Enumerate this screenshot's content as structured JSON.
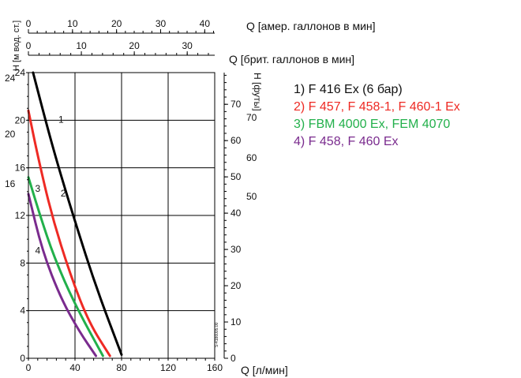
{
  "chart_data": {
    "type": "line",
    "xlabel": "Q [л/мин]",
    "ylabel": "H [м вод. ст.]",
    "x_ticks": [
      0,
      40,
      80,
      120,
      160
    ],
    "y_ticks": [
      0,
      4,
      8,
      12,
      16,
      20,
      24
    ],
    "xlim": [
      0,
      160
    ],
    "ylim": [
      0,
      24
    ],
    "grid": true,
    "secondary_axes": {
      "top1": {
        "label": "Q [амер. галлонов в мин]",
        "ticks": [
          0,
          10,
          20,
          30,
          40
        ]
      },
      "top2": {
        "label": "Q [брит. галлонов в мин]",
        "ticks": [
          0,
          10,
          20,
          30
        ]
      },
      "right": {
        "label": "Н [футы]",
        "ticks": [
          0,
          10,
          20,
          30,
          40,
          50,
          60,
          70
        ]
      },
      "outside_right_ticks": [
        50,
        60,
        70
      ],
      "outside_left_ticks": [
        16,
        20,
        24
      ]
    },
    "watermark": "S-4186005.00",
    "series": [
      {
        "name": "1) F 416 Ex (6 бар)",
        "label": "1",
        "color": "#000000",
        "x": [
          4,
          16,
          26,
          40,
          58,
          80
        ],
        "y": [
          24,
          19.5,
          16,
          11.5,
          6,
          0.3
        ]
      },
      {
        "name": "2) F 457, F 458-1, F 460-1 Ex",
        "label": "2",
        "color": "#ee2a24",
        "x": [
          0,
          8,
          20,
          36,
          52,
          70
        ],
        "y": [
          20.8,
          17,
          12,
          7,
          3,
          0.2
        ]
      },
      {
        "name": "3) FBM 4000 Ex, FEM 4070",
        "label": "3",
        "color": "#22b04b",
        "x": [
          0,
          10,
          22,
          40,
          64
        ],
        "y": [
          15.2,
          12,
          8.5,
          4.5,
          0.2
        ]
      },
      {
        "name": "4) F 458, F 460 Ex",
        "label": "4",
        "color": "#7a2b8e",
        "x": [
          0,
          12,
          28,
          44,
          58
        ],
        "y": [
          13.8,
          9,
          5,
          2.2,
          0.2
        ]
      }
    ]
  }
}
